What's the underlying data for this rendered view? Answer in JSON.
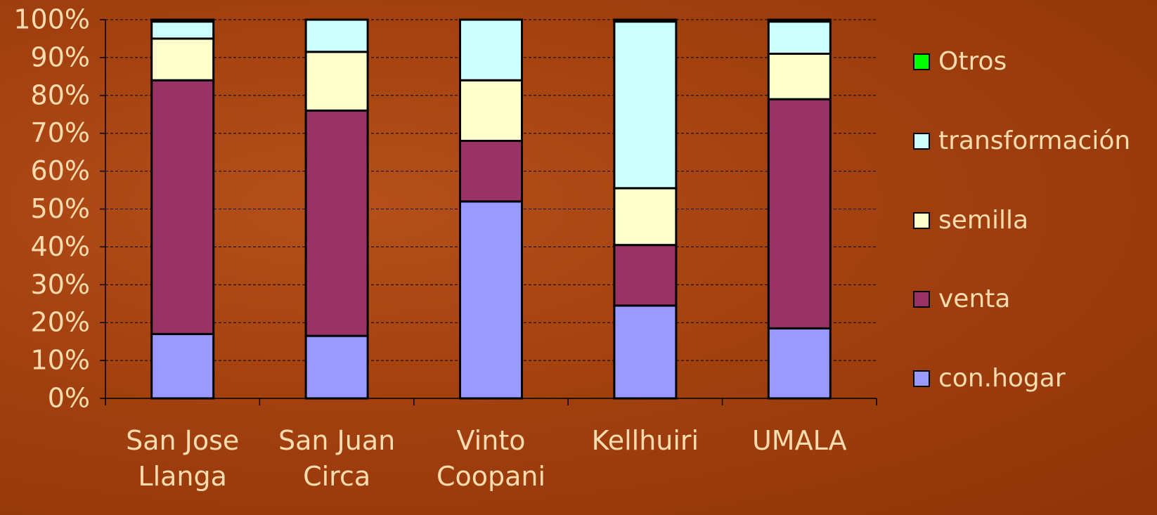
{
  "chart_data": {
    "type": "stacked_bar",
    "categories": [
      "San Jose Llanga",
      "San Juan Circa",
      "Vinto Coopani",
      "Kellhuiri",
      "UMALA"
    ],
    "series": [
      {
        "name": "con.hogar",
        "color": "#9999ff",
        "values": [
          17,
          16.5,
          52,
          24.5,
          18.5
        ]
      },
      {
        "name": "venta",
        "color": "#993366",
        "values": [
          67,
          59.5,
          16,
          16,
          60.5
        ]
      },
      {
        "name": "semilla",
        "color": "#ffffcc",
        "values": [
          11,
          15.5,
          16,
          15,
          12
        ]
      },
      {
        "name": "transformación",
        "color": "#ccffff",
        "values": [
          4.5,
          8.5,
          16,
          44,
          8.5
        ]
      },
      {
        "name": "Otros",
        "color": "#00ff00",
        "values": [
          0.5,
          0,
          0,
          0.5,
          0.5
        ]
      }
    ],
    "ylim": [
      0,
      100
    ],
    "yticks": [
      {
        "value": 0,
        "label": "0%"
      },
      {
        "value": 10,
        "label": "10%"
      },
      {
        "value": 20,
        "label": "20%"
      },
      {
        "value": 30,
        "label": "30%"
      },
      {
        "value": 40,
        "label": "40%"
      },
      {
        "value": 50,
        "label": "50%"
      },
      {
        "value": 60,
        "label": "60%"
      },
      {
        "value": 70,
        "label": "70%"
      },
      {
        "value": 80,
        "label": "80%"
      },
      {
        "value": 90,
        "label": "90%"
      },
      {
        "value": 100,
        "label": "100%"
      }
    ],
    "grid": true,
    "legend": "right"
  }
}
